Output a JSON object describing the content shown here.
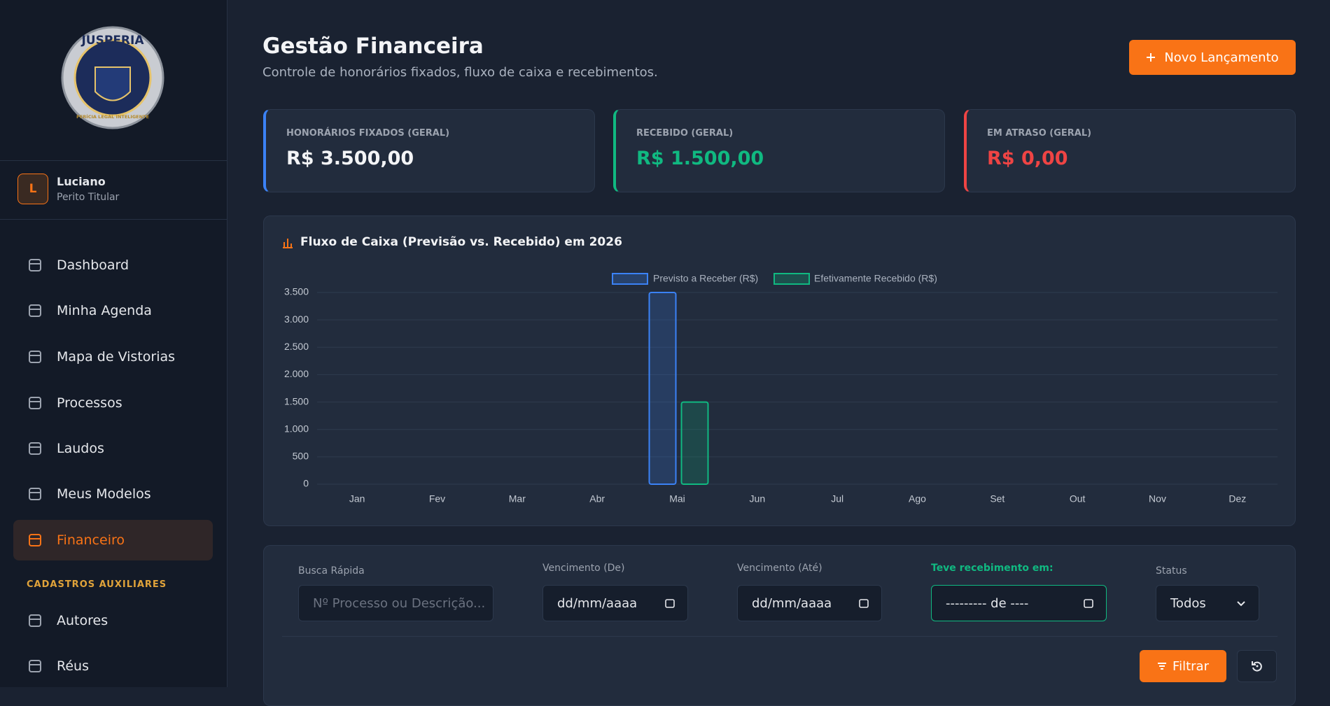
{
  "sidebar": {
    "brand": "JUSPERIA",
    "brand_tagline": "PERÍCIA LEGAL INTELIGENTE",
    "user": {
      "initial": "L",
      "name": "Luciano",
      "role": "Perito Titular"
    },
    "nav": [
      "Dashboard",
      "Minha Agenda",
      "Mapa de Vistorias",
      "Processos",
      "Laudos",
      "Meus Modelos",
      "Financeiro"
    ],
    "section": "CADASTROS AUXILIARES",
    "nav2": [
      "Autores",
      "Réus"
    ]
  },
  "header": {
    "title": "Gestão Financeira",
    "subtitle": "Controle de honorários fixados, fluxo de caixa e recebimentos.",
    "button": "Novo Lançamento"
  },
  "cards": [
    {
      "label": "HONORÁRIOS FIXADOS (GERAL)",
      "value": "R$ 3.500,00",
      "color": "#3b82f6"
    },
    {
      "label": "RECEBIDO (GERAL)",
      "value": "R$ 1.500,00",
      "color": "#10b981"
    },
    {
      "label": "EM ATRASO (GERAL)",
      "value": "R$ 0,00",
      "color": "#ef4444"
    }
  ],
  "chart_data": {
    "type": "bar",
    "title": "Fluxo de Caixa (Previsão vs. Recebido) em 2026",
    "categories": [
      "Jan",
      "Fev",
      "Mar",
      "Abr",
      "Mai",
      "Jun",
      "Jul",
      "Ago",
      "Set",
      "Out",
      "Nov",
      "Dez"
    ],
    "series": [
      {
        "name": "Previsto a Receber (R$)",
        "color": "#3b82f6",
        "values": [
          0,
          0,
          0,
          0,
          3500,
          0,
          0,
          0,
          0,
          0,
          0,
          0
        ]
      },
      {
        "name": "Efetivamente Recebido (R$)",
        "color": "#10b981",
        "values": [
          0,
          0,
          0,
          0,
          1500,
          0,
          0,
          0,
          0,
          0,
          0,
          0
        ]
      }
    ],
    "ylim": [
      0,
      3500
    ],
    "yticks": [
      0,
      500,
      {
        "value": 1000,
        "label": "1.000"
      },
      {
        "value": 1500,
        "label": "1.500"
      },
      {
        "value": 2000,
        "label": "2.000"
      },
      {
        "value": 2500,
        "label": "2.500"
      },
      {
        "value": 3000,
        "label": "3.000"
      },
      {
        "value": 3500,
        "label": "3.500"
      }
    ],
    "grid": true,
    "legend": "top"
  },
  "filters": {
    "fields": [
      {
        "label": "Busca Rápida",
        "placeholder": "Nº Processo ou Descrição..."
      },
      {
        "label": "Vencimento (De)",
        "placeholder": "dd/mm/aaaa"
      },
      {
        "label": "Vencimento (Até)",
        "placeholder": "dd/mm/aaaa"
      },
      {
        "label": "Teve recebimento em:",
        "placeholder": "--------- de ----"
      },
      {
        "label": "Status",
        "placeholder": "Todos"
      }
    ],
    "button": "Filtrar"
  }
}
